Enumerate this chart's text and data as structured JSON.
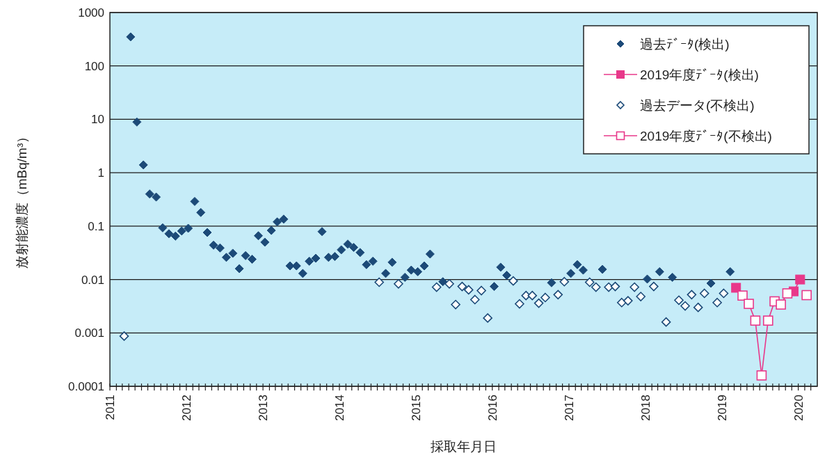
{
  "chart_data": {
    "type": "scatter",
    "xlabel": "採取年月日",
    "ylabel": "放射能濃度（mBq/m³）",
    "log": "y",
    "grid": "y",
    "legend": "top right",
    "xlim": [
      "2011-01-01",
      "2020-04-01"
    ],
    "ylim": [
      0.0001,
      1000
    ],
    "yticks": [
      0.0001,
      0.001,
      0.01,
      0.1,
      1,
      10,
      100,
      1000
    ],
    "xticks": [
      {
        "value": "2011-01",
        "label": "2011"
      },
      {
        "value": "2011-02",
        "label": null
      },
      {
        "value": "2011-03",
        "label": null
      },
      {
        "value": "2011-04",
        "label": null
      },
      {
        "value": "2011-05",
        "label": null
      },
      {
        "value": "2011-06",
        "label": null
      },
      {
        "value": "2011-07",
        "label": null
      },
      {
        "value": "2011-08",
        "label": null
      },
      {
        "value": "2011-09",
        "label": null
      },
      {
        "value": "2011-10",
        "label": null
      },
      {
        "value": "2011-11",
        "label": null
      },
      {
        "value": "2011-12",
        "label": null
      },
      {
        "value": "2012-01",
        "label": "2012"
      },
      {
        "value": "2012-02",
        "label": null
      },
      {
        "value": "2012-03",
        "label": null
      },
      {
        "value": "2012-04",
        "label": null
      },
      {
        "value": "2012-05",
        "label": null
      },
      {
        "value": "2012-06",
        "label": null
      },
      {
        "value": "2012-07",
        "label": null
      },
      {
        "value": "2012-08",
        "label": null
      },
      {
        "value": "2012-09",
        "label": null
      },
      {
        "value": "2012-10",
        "label": null
      },
      {
        "value": "2012-11",
        "label": null
      },
      {
        "value": "2012-12",
        "label": null
      },
      {
        "value": "2013-01",
        "label": "2013"
      },
      {
        "value": "2013-02",
        "label": null
      },
      {
        "value": "2013-03",
        "label": null
      },
      {
        "value": "2013-04",
        "label": null
      },
      {
        "value": "2013-05",
        "label": null
      },
      {
        "value": "2013-06",
        "label": null
      },
      {
        "value": "2013-07",
        "label": null
      },
      {
        "value": "2013-08",
        "label": null
      },
      {
        "value": "2013-09",
        "label": null
      },
      {
        "value": "2013-10",
        "label": null
      },
      {
        "value": "2013-11",
        "label": null
      },
      {
        "value": "2013-12",
        "label": null
      },
      {
        "value": "2014-01",
        "label": "2014"
      },
      {
        "value": "2014-02",
        "label": null
      },
      {
        "value": "2014-03",
        "label": null
      },
      {
        "value": "2014-04",
        "label": null
      },
      {
        "value": "2014-05",
        "label": null
      },
      {
        "value": "2014-06",
        "label": null
      },
      {
        "value": "2014-07",
        "label": null
      },
      {
        "value": "2014-08",
        "label": null
      },
      {
        "value": "2014-09",
        "label": null
      },
      {
        "value": "2014-10",
        "label": null
      },
      {
        "value": "2014-11",
        "label": null
      },
      {
        "value": "2014-12",
        "label": null
      },
      {
        "value": "2015-01",
        "label": "2015"
      },
      {
        "value": "2015-02",
        "label": null
      },
      {
        "value": "2015-03",
        "label": null
      },
      {
        "value": "2015-04",
        "label": null
      },
      {
        "value": "2015-05",
        "label": null
      },
      {
        "value": "2015-06",
        "label": null
      },
      {
        "value": "2015-07",
        "label": null
      },
      {
        "value": "2015-08",
        "label": null
      },
      {
        "value": "2015-09",
        "label": null
      },
      {
        "value": "2015-10",
        "label": null
      },
      {
        "value": "2015-11",
        "label": null
      },
      {
        "value": "2015-12",
        "label": null
      },
      {
        "value": "2016-01",
        "label": "2016"
      },
      {
        "value": "2016-02",
        "label": null
      },
      {
        "value": "2016-03",
        "label": null
      },
      {
        "value": "2016-04",
        "label": null
      },
      {
        "value": "2016-05",
        "label": null
      },
      {
        "value": "2016-06",
        "label": null
      },
      {
        "value": "2016-07",
        "label": null
      },
      {
        "value": "2016-08",
        "label": null
      },
      {
        "value": "2016-09",
        "label": null
      },
      {
        "value": "2016-10",
        "label": null
      },
      {
        "value": "2016-11",
        "label": null
      },
      {
        "value": "2016-12",
        "label": null
      },
      {
        "value": "2017-01",
        "label": "2017"
      },
      {
        "value": "2017-02",
        "label": null
      },
      {
        "value": "2017-03",
        "label": null
      },
      {
        "value": "2017-04",
        "label": null
      },
      {
        "value": "2017-05",
        "label": null
      },
      {
        "value": "2017-06",
        "label": null
      },
      {
        "value": "2017-07",
        "label": null
      },
      {
        "value": "2017-08",
        "label": null
      },
      {
        "value": "2017-09",
        "label": null
      },
      {
        "value": "2017-10",
        "label": null
      },
      {
        "value": "2017-11",
        "label": null
      },
      {
        "value": "2017-12",
        "label": null
      },
      {
        "value": "2018-01",
        "label": "2018"
      },
      {
        "value": "2018-02",
        "label": null
      },
      {
        "value": "2018-03",
        "label": null
      },
      {
        "value": "2018-04",
        "label": null
      },
      {
        "value": "2018-05",
        "label": null
      },
      {
        "value": "2018-06",
        "label": null
      },
      {
        "value": "2018-07",
        "label": null
      },
      {
        "value": "2018-08",
        "label": null
      },
      {
        "value": "2018-09",
        "label": null
      },
      {
        "value": "2018-10",
        "label": null
      },
      {
        "value": "2018-11",
        "label": null
      },
      {
        "value": "2018-12",
        "label": null
      },
      {
        "value": "2019-01",
        "label": "2019"
      },
      {
        "value": "2019-02",
        "label": null
      },
      {
        "value": "2019-03",
        "label": null
      },
      {
        "value": "2019-04",
        "label": null
      },
      {
        "value": "2019-05",
        "label": null
      },
      {
        "value": "2019-06",
        "label": null
      },
      {
        "value": "2019-07",
        "label": null
      },
      {
        "value": "2019-08",
        "label": null
      },
      {
        "value": "2019-09",
        "label": null
      },
      {
        "value": "2019-10",
        "label": null
      },
      {
        "value": "2019-11",
        "label": null
      },
      {
        "value": "2019-12",
        "label": null
      },
      {
        "value": "2020-01",
        "label": "2020"
      },
      {
        "value": "2020-02",
        "label": null
      },
      {
        "value": "2020-03",
        "label": null
      }
    ],
    "x": [
      "2011-03-10",
      "2011-04-10",
      "2011-05-10",
      "2011-06-10",
      "2011-07-10",
      "2011-08-10",
      "2011-09-10",
      "2011-10-10",
      "2011-11-10",
      "2011-12-10",
      "2012-01-10",
      "2012-02-10",
      "2012-03-10",
      "2012-04-10",
      "2012-05-10",
      "2012-06-10",
      "2012-07-10",
      "2012-08-10",
      "2012-09-10",
      "2012-10-10",
      "2012-11-10",
      "2012-12-10",
      "2013-01-10",
      "2013-02-10",
      "2013-03-10",
      "2013-04-10",
      "2013-05-10",
      "2013-06-10",
      "2013-07-10",
      "2013-08-10",
      "2013-09-10",
      "2013-10-10",
      "2013-11-10",
      "2013-12-10",
      "2014-01-10",
      "2014-02-10",
      "2014-03-10",
      "2014-04-10",
      "2014-05-10",
      "2014-06-10",
      "2014-07-10",
      "2014-08-10",
      "2014-09-10",
      "2014-10-10",
      "2014-11-10",
      "2014-12-10",
      "2015-01-10",
      "2015-02-10",
      "2015-03-10",
      "2015-04-10",
      "2015-05-10",
      "2015-06-10",
      "2015-07-10",
      "2015-08-10",
      "2015-09-10",
      "2015-10-10",
      "2015-11-10",
      "2015-12-10",
      "2016-01-10",
      "2016-02-10",
      "2016-03-10",
      "2016-04-10",
      "2016-05-10",
      "2016-06-10",
      "2016-07-10",
      "2016-08-10",
      "2016-09-10",
      "2016-10-10",
      "2016-11-10",
      "2016-12-10",
      "2017-01-10",
      "2017-02-10",
      "2017-03-10",
      "2017-04-10",
      "2017-05-10",
      "2017-06-10",
      "2017-07-10",
      "2017-08-10",
      "2017-09-10",
      "2017-10-10",
      "2017-11-10",
      "2017-12-10",
      "2018-01-10",
      "2018-02-10",
      "2018-03-10",
      "2018-04-10",
      "2018-05-10",
      "2018-06-10",
      "2018-07-10",
      "2018-08-10",
      "2018-09-10",
      "2018-10-10",
      "2018-11-10",
      "2018-12-10",
      "2019-01-10",
      "2019-02-10"
    ],
    "series": [
      {
        "name": "過去ﾃﾞｰﾀ(検出)",
        "marker": "diamond",
        "color": "#1c4a78",
        "values": [
          null,
          350,
          8.9,
          1.4,
          0.4,
          0.35,
          0.093,
          0.072,
          0.065,
          0.081,
          0.091,
          0.29,
          0.18,
          0.076,
          0.044,
          0.039,
          0.026,
          0.031,
          0.016,
          0.028,
          0.024,
          0.066,
          0.05,
          0.083,
          0.12,
          0.135,
          0.018,
          0.018,
          0.013,
          0.022,
          0.025,
          0.079,
          0.026,
          0.027,
          0.036,
          0.046,
          0.04,
          0.032,
          0.019,
          0.022,
          null,
          0.013,
          0.021,
          null,
          0.011,
          0.015,
          0.014,
          0.018,
          0.03,
          null,
          0.0091,
          null,
          null,
          null,
          null,
          null,
          null,
          null,
          0.0074,
          0.017,
          0.012,
          null,
          null,
          null,
          null,
          null,
          null,
          0.0087,
          null,
          null,
          0.013,
          0.019,
          0.015,
          null,
          null,
          0.0155,
          null,
          null,
          null,
          null,
          null,
          null,
          0.0102,
          null,
          0.014,
          null,
          0.011,
          null,
          null,
          null,
          null,
          null,
          0.0085,
          null,
          null,
          0.014
        ]
      },
      {
        "name": "2019年度ﾃﾞｰﾀ(検出)",
        "type": "line",
        "marker": "square",
        "color": "#e8388a",
        "x": [
          "2019-03-10",
          null,
          "2019-12-10",
          "2020-01-10"
        ],
        "values": [
          0.007,
          null,
          0.006,
          0.01
        ]
      },
      {
        "name": "過去データ(不検出)",
        "marker": "diamond",
        "color": "#1c4a78",
        "values": [
          0.00087,
          null,
          null,
          null,
          null,
          null,
          null,
          null,
          null,
          null,
          null,
          null,
          null,
          null,
          null,
          null,
          null,
          null,
          null,
          null,
          null,
          null,
          null,
          null,
          null,
          null,
          null,
          null,
          null,
          null,
          null,
          null,
          null,
          null,
          null,
          null,
          null,
          null,
          null,
          null,
          0.0089,
          null,
          null,
          0.0083,
          null,
          null,
          null,
          null,
          null,
          0.0072,
          null,
          0.0083,
          0.0034,
          0.0074,
          0.0064,
          0.0042,
          0.0062,
          0.0019,
          null,
          null,
          null,
          0.0094,
          0.0035,
          0.005,
          0.005,
          0.0036,
          0.0046,
          null,
          0.0052,
          0.0091,
          null,
          null,
          null,
          0.0089,
          0.0072,
          null,
          0.0072,
          0.0074,
          0.0037,
          0.004,
          0.0072,
          0.0048,
          null,
          0.0074,
          null,
          0.0016,
          null,
          0.0041,
          0.0032,
          0.0052,
          0.003,
          0.0055,
          null,
          0.0037,
          0.0055,
          null
        ]
      },
      {
        "name": "2019年度ﾃﾞｰﾀ(不検出)",
        "type": "line",
        "marker": "square",
        "color": "#e8388a",
        "x": [
          "2019-04-10",
          "2019-05-10",
          "2019-06-10",
          "2019-07-10",
          "2019-08-10",
          "2019-09-10",
          "2019-10-10",
          "2019-11-10",
          null,
          "2020-02-10"
        ],
        "values": [
          0.005,
          0.0035,
          0.0017,
          0.00016,
          0.0017,
          0.0039,
          0.0034,
          0.0055,
          null,
          0.0051
        ]
      }
    ]
  }
}
